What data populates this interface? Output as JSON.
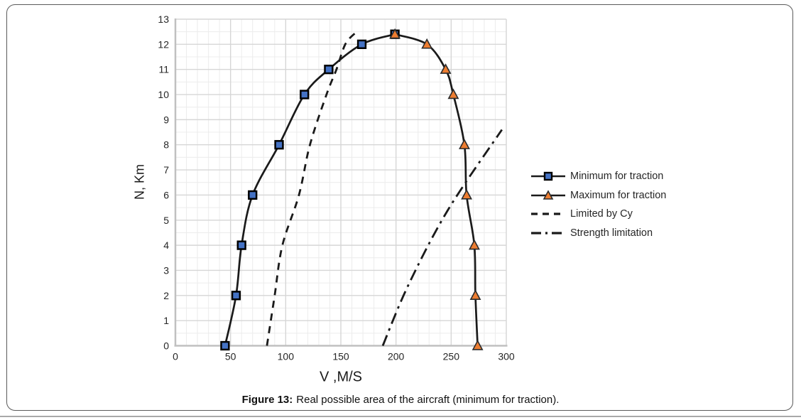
{
  "figure": {
    "caption_prefix": "Figure 13:",
    "caption_text": "Real possible area of the aircraft (minimum for traction)."
  },
  "chart_data": {
    "type": "line",
    "title": "",
    "xlabel": "V ,M/S",
    "ylabel": "N, Km",
    "xlim": [
      0,
      300
    ],
    "ylim": [
      0,
      13
    ],
    "x_ticks": [
      0,
      50,
      100,
      150,
      200,
      250,
      300
    ],
    "y_ticks": [
      0,
      1,
      2,
      3,
      4,
      5,
      6,
      7,
      8,
      9,
      10,
      11,
      12,
      13
    ],
    "grid": {
      "minor_x_step": 10,
      "major_x_step": 50,
      "minor_y_step": 0.5,
      "major_y_step": 1
    },
    "legend_position": "right",
    "colors": {
      "line": "#1a1a1a",
      "grid_major": "#d6d6d6",
      "grid_minor": "#ececec",
      "axis": "#c0c0c0",
      "square_fill": "#4472c4",
      "square_stroke": "#000000",
      "triangle_fill": "#ed7d31",
      "triangle_stroke": "#2b2b2b"
    },
    "series": [
      {
        "name": "Minimum for traction",
        "marker": "square",
        "marker_fill": "#4472c4",
        "line": "solid",
        "points": [
          [
            45,
            0
          ],
          [
            55,
            2
          ],
          [
            60,
            4
          ],
          [
            70,
            6
          ],
          [
            94,
            8
          ],
          [
            117,
            10
          ],
          [
            139,
            11
          ],
          [
            169,
            12
          ],
          [
            199,
            12.4
          ]
        ]
      },
      {
        "name": "Maximum for traction",
        "marker": "triangle",
        "marker_fill": "#ed7d31",
        "line": "solid",
        "points": [
          [
            199,
            12.4
          ],
          [
            228,
            12
          ],
          [
            245,
            11
          ],
          [
            252,
            10
          ],
          [
            262,
            8
          ],
          [
            264,
            6
          ],
          [
            271,
            4
          ],
          [
            272,
            2
          ],
          [
            274,
            0
          ]
        ]
      },
      {
        "name": "Limited by Cy",
        "marker": "none",
        "marker_fill": "",
        "line": "dashed",
        "points": [
          [
            83,
            0
          ],
          [
            90,
            2
          ],
          [
            97,
            4
          ],
          [
            112,
            6
          ],
          [
            122,
            8
          ],
          [
            137,
            10
          ],
          [
            146,
            11
          ],
          [
            154,
            12
          ],
          [
            163,
            12.45
          ]
        ]
      },
      {
        "name": "Strength limitation",
        "marker": "none",
        "marker_fill": "",
        "line": "dashdot",
        "points": [
          [
            188,
            0
          ],
          [
            211,
            2.4
          ],
          [
            247,
            5.4
          ],
          [
            296,
            8.6
          ]
        ]
      }
    ]
  }
}
